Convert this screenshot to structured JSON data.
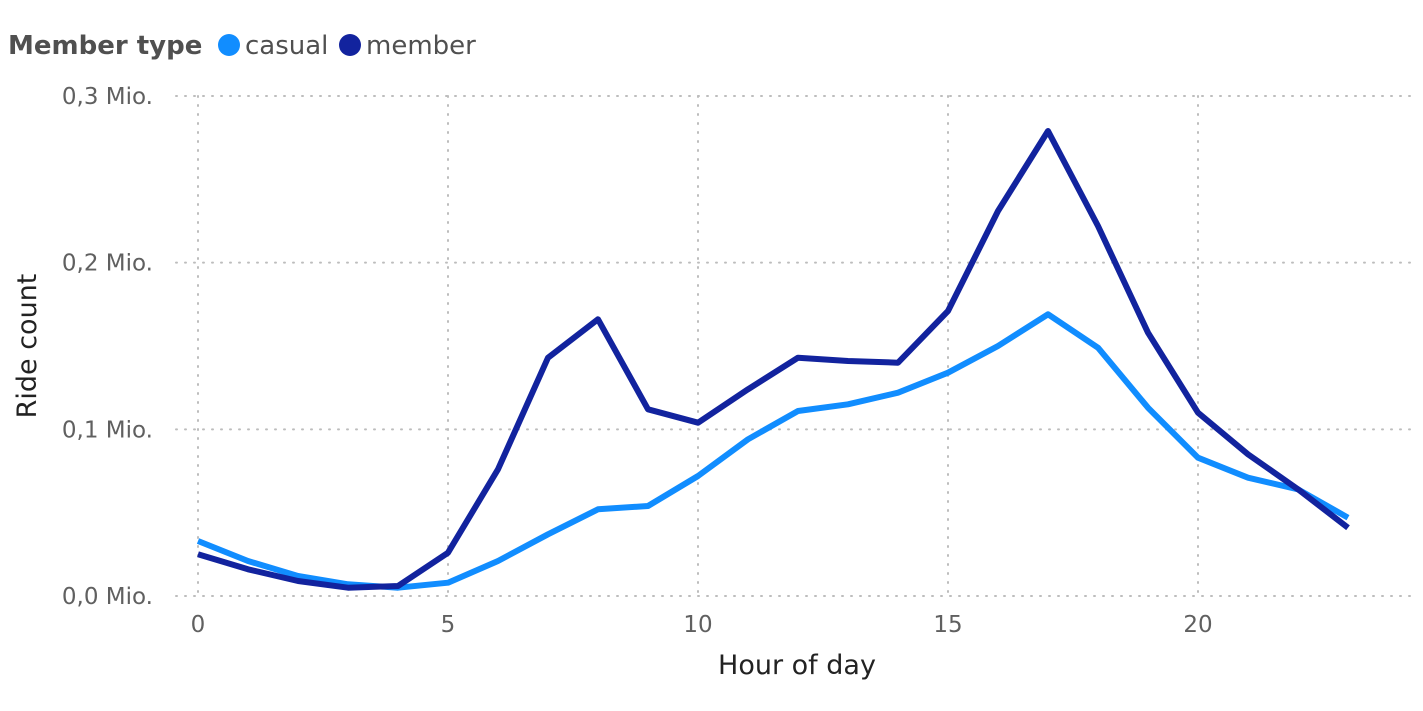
{
  "legend": {
    "title": "Member type",
    "items": [
      {
        "label": "casual",
        "color": "#118DFF"
      },
      {
        "label": "member",
        "color": "#12239E"
      }
    ]
  },
  "chart_data": {
    "type": "line",
    "title": "",
    "xlabel": "Hour of day",
    "ylabel": "Ride count",
    "x": [
      0,
      1,
      2,
      3,
      4,
      5,
      6,
      7,
      8,
      9,
      10,
      11,
      12,
      13,
      14,
      15,
      16,
      17,
      18,
      19,
      20,
      21,
      22,
      23
    ],
    "xlim": [
      0,
      24
    ],
    "ylim": [
      0,
      0.3
    ],
    "x_ticks": [
      0,
      5,
      10,
      15,
      20
    ],
    "y_ticks": [
      0,
      0.1,
      0.2,
      0.3
    ],
    "y_tick_labels": [
      "0,0 Mio.",
      "0,1 Mio.",
      "0,2 Mio.",
      "0,3 Mio."
    ],
    "grid": true,
    "legend_position": "top-left",
    "series": [
      {
        "name": "casual",
        "color": "#118DFF",
        "values": [
          0.033,
          0.021,
          0.012,
          0.007,
          0.005,
          0.008,
          0.021,
          0.037,
          0.052,
          0.054,
          0.072,
          0.094,
          0.111,
          0.115,
          0.122,
          0.134,
          0.15,
          0.169,
          0.149,
          0.113,
          0.083,
          0.071,
          0.064,
          0.047
        ]
      },
      {
        "name": "member",
        "color": "#12239E",
        "values": [
          0.025,
          0.016,
          0.009,
          0.005,
          0.006,
          0.026,
          0.076,
          0.143,
          0.166,
          0.112,
          0.104,
          0.124,
          0.143,
          0.141,
          0.14,
          0.171,
          0.231,
          0.279,
          0.222,
          0.158,
          0.11,
          0.085,
          0.064,
          0.041
        ]
      }
    ]
  }
}
